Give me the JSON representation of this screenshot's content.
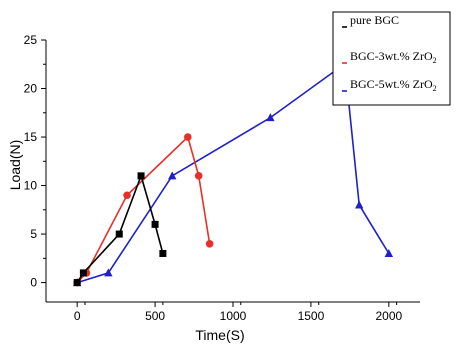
{
  "chart_data": {
    "type": "line",
    "xlabel": "Time(S)",
    "ylabel": "Load(N)",
    "xlim": [
      -200,
      2200
    ],
    "ylim": [
      -2,
      25
    ],
    "x_ticks": [
      0,
      500,
      1000,
      1500,
      2000
    ],
    "y_ticks": [
      0,
      5,
      10,
      15,
      20,
      25
    ],
    "grid": false,
    "legend_position": "top-right",
    "series": [
      {
        "name": "pure BGC",
        "name_prefix": "pure BGC",
        "name_subscript": "",
        "color": "#000000",
        "marker": "square",
        "points": [
          [
            0,
            0
          ],
          [
            40,
            1
          ],
          [
            270,
            5
          ],
          [
            410,
            11
          ],
          [
            500,
            6
          ],
          [
            550,
            3
          ]
        ]
      },
      {
        "name": "BGC-3wt.% ZrO2",
        "name_prefix": "BGC-3wt.% ZrO",
        "name_subscript": "2",
        "color": "#e8302a",
        "marker": "circle",
        "points": [
          [
            0,
            0
          ],
          [
            60,
            1
          ],
          [
            320,
            9
          ],
          [
            710,
            15
          ],
          [
            780,
            11
          ],
          [
            850,
            4
          ]
        ]
      },
      {
        "name": "BGC-5wt.% ZrO2",
        "name_prefix": "BGC-5wt.% ZrO",
        "name_subscript": "2",
        "color": "#2020c8",
        "marker": "triangle",
        "points": [
          [
            0,
            0
          ],
          [
            200,
            1
          ],
          [
            610,
            11
          ],
          [
            1240,
            17
          ],
          [
            1670,
            22
          ],
          [
            1740,
            19
          ],
          [
            1810,
            8
          ],
          [
            2000,
            3
          ]
        ]
      }
    ]
  }
}
